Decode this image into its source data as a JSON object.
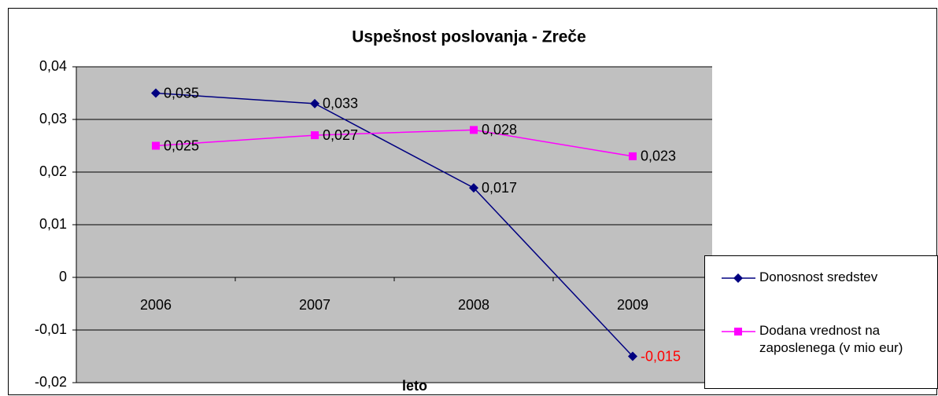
{
  "chart_data": {
    "type": "line",
    "title": "Uspešnost poslovanja - Zreče",
    "x_label": "leto",
    "categories": [
      "2006",
      "2007",
      "2008",
      "2009"
    ],
    "series": [
      {
        "name": "Donosnost sredstev",
        "color": "#000080",
        "marker": "diamond",
        "values": [
          0.035,
          0.033,
          0.017,
          -0.015
        ],
        "value_labels": [
          "0,035",
          "0,033",
          "0,017",
          "-0,015"
        ],
        "value_label_colors": [
          "#000000",
          "#000000",
          "#000000",
          "#ff0000"
        ]
      },
      {
        "name": "Dodana vrednost na zaposlenega (v mio eur)",
        "color": "#ff00ff",
        "marker": "square",
        "values": [
          0.025,
          0.027,
          0.028,
          0.023
        ],
        "value_labels": [
          "0,025",
          "0,027",
          "0,028",
          "0,023"
        ],
        "value_label_colors": [
          "#000000",
          "#000000",
          "#000000",
          "#000000"
        ]
      }
    ],
    "ylim": [
      -0.02,
      0.04
    ],
    "yticks": [
      {
        "value": -0.02,
        "label": "-0,02"
      },
      {
        "value": -0.01,
        "label": "-0,01"
      },
      0,
      {
        "value": 0.01,
        "label": "0,01"
      },
      {
        "value": 0.02,
        "label": "0,02"
      },
      {
        "value": 0.03,
        "label": "0,03"
      },
      {
        "value": 0.04,
        "label": "0,04"
      }
    ],
    "grid": true,
    "plot_background": "#c0c0c0",
    "legend": "right"
  }
}
